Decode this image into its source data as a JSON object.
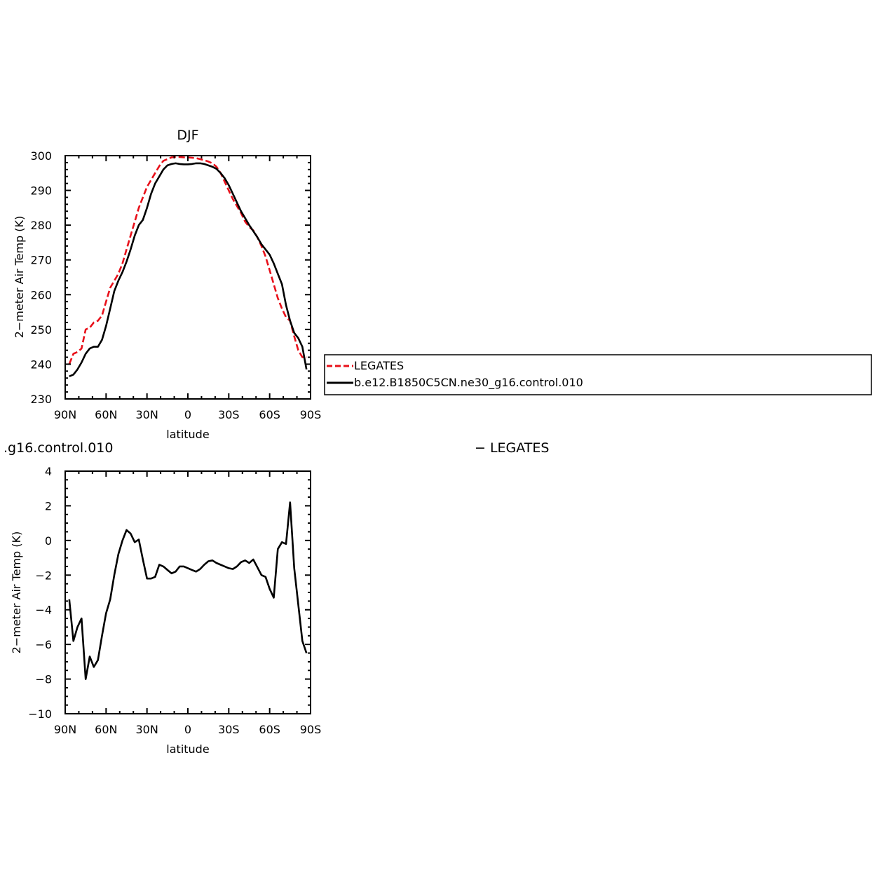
{
  "chart_data": [
    {
      "type": "line",
      "title": "DJF",
      "xlabel": "latitude",
      "ylabel": "2−meter Air Temp (K)",
      "xlim": [
        90,
        -90
      ],
      "ylim": [
        230,
        300
      ],
      "x_ticks": [
        90,
        60,
        30,
        0,
        -30,
        -60,
        -90
      ],
      "x_tick_labels": [
        "90N",
        "60N",
        "30N",
        "0",
        "30S",
        "60S",
        "90S"
      ],
      "y_ticks": [
        230,
        240,
        250,
        260,
        270,
        280,
        290,
        300
      ],
      "legend": {
        "position": "right",
        "entries": [
          {
            "label": "LEGATES",
            "color": "#e8101a",
            "style": "dashed"
          },
          {
            "label": "b.e12.B1850C5CN.ne30_g16.control.010",
            "color": "#000000",
            "style": "solid"
          }
        ]
      },
      "series": [
        {
          "name": "LEGATES",
          "color": "#e8101a",
          "style": "dashed",
          "x": [
            87,
            84,
            81,
            78,
            75,
            72,
            69,
            66,
            63,
            60,
            57,
            54,
            51,
            48,
            45,
            42,
            39,
            36,
            33,
            30,
            27,
            24,
            21,
            18,
            15,
            12,
            9,
            6,
            3,
            0,
            -3,
            -6,
            -9,
            -12,
            -15,
            -18,
            -21,
            -24,
            -27,
            -30,
            -33,
            -36,
            -39,
            -42,
            -45,
            -48,
            -51,
            -54,
            -57,
            -60,
            -63,
            -66,
            -69,
            -72,
            -75,
            -78,
            -81,
            -84,
            -87
          ],
          "y": [
            240,
            243,
            243.5,
            244.5,
            250,
            250.5,
            252,
            252.5,
            254,
            258,
            262,
            264,
            266,
            269,
            273,
            277,
            281,
            285,
            288,
            291,
            293,
            295,
            297,
            298.5,
            299,
            299.5,
            299.6,
            299.6,
            299.5,
            299.5,
            299.4,
            299.3,
            299,
            298.7,
            298.3,
            297.8,
            296.8,
            295,
            292.5,
            290,
            287.5,
            285.5,
            283.5,
            281,
            279.5,
            278.5,
            276.5,
            274,
            271,
            267,
            263,
            259,
            256,
            253.5,
            252.5,
            248,
            244,
            242,
            242
          ]
        },
        {
          "name": "b.e12.B1850C5CN.ne30_g16.control.010",
          "color": "#000000",
          "style": "solid",
          "x": [
            87,
            84,
            81,
            78,
            75,
            72,
            69,
            66,
            63,
            60,
            57,
            54,
            51,
            48,
            45,
            42,
            39,
            36,
            33,
            30,
            27,
            24,
            21,
            18,
            15,
            12,
            9,
            6,
            3,
            0,
            -3,
            -6,
            -9,
            -12,
            -15,
            -18,
            -21,
            -24,
            -27,
            -30,
            -33,
            -36,
            -39,
            -42,
            -45,
            -48,
            -51,
            -54,
            -57,
            -60,
            -63,
            -66,
            -69,
            -72,
            -75,
            -78,
            -81,
            -84,
            -87
          ],
          "y": [
            236.5,
            237,
            238.5,
            240.5,
            243,
            244.5,
            245,
            245,
            247,
            251,
            256,
            261,
            264,
            266.5,
            269.5,
            273,
            277,
            280,
            281.5,
            285,
            289,
            292,
            294,
            296,
            297.2,
            297.6,
            297.8,
            297.6,
            297.5,
            297.5,
            297.6,
            297.8,
            297.8,
            297.6,
            297.2,
            296.8,
            296.2,
            295,
            293.5,
            291.5,
            289,
            286.5,
            284,
            282,
            280,
            278.3,
            276.5,
            274.5,
            273,
            271.5,
            269,
            266,
            263,
            257,
            252.5,
            249,
            247.5,
            245,
            238.5
          ]
        }
      ]
    },
    {
      "type": "line",
      "title": ".g16.control.010",
      "title_right": "− LEGATES",
      "xlabel": "latitude",
      "ylabel": "2−meter Air Temp (K)",
      "xlim": [
        90,
        -90
      ],
      "ylim": [
        -10,
        4
      ],
      "x_ticks": [
        90,
        60,
        30,
        0,
        -30,
        -60,
        -90
      ],
      "x_tick_labels": [
        "90N",
        "60N",
        "30N",
        "0",
        "30S",
        "60S",
        "90S"
      ],
      "y_ticks": [
        -10,
        -8,
        -6,
        -4,
        -2,
        0,
        2,
        4
      ],
      "y_tick_labels": [
        "−10",
        "−8",
        "−6",
        "−4",
        "−2",
        "0",
        "2",
        "4"
      ],
      "series": [
        {
          "color": "#000000",
          "style": "solid",
          "x": [
            87,
            84,
            81,
            78,
            75,
            72,
            69,
            66,
            63,
            60,
            57,
            54,
            51,
            48,
            45,
            42,
            39,
            36,
            33,
            30,
            27,
            24,
            21,
            18,
            15,
            12,
            9,
            6,
            3,
            0,
            -3,
            -6,
            -9,
            -12,
            -15,
            -18,
            -21,
            -24,
            -27,
            -30,
            -33,
            -36,
            -39,
            -42,
            -45,
            -48,
            -51,
            -54,
            -57,
            -60,
            -63,
            -66,
            -69,
            -72,
            -75,
            -78,
            -81,
            -84,
            -87
          ],
          "y": [
            -3.4,
            -5.8,
            -5.0,
            -4.5,
            -8.0,
            -6.7,
            -7.3,
            -6.9,
            -5.5,
            -4.2,
            -3.4,
            -2.0,
            -0.8,
            0.0,
            0.6,
            0.4,
            -0.1,
            0.05,
            -1.1,
            -2.2,
            -2.2,
            -2.1,
            -1.4,
            -1.5,
            -1.7,
            -1.9,
            -1.8,
            -1.5,
            -1.5,
            -1.6,
            -1.7,
            -1.8,
            -1.65,
            -1.4,
            -1.2,
            -1.15,
            -1.3,
            -1.4,
            -1.5,
            -1.6,
            -1.65,
            -1.5,
            -1.25,
            -1.15,
            -1.3,
            -1.1,
            -1.55,
            -2.0,
            -2.1,
            -2.8,
            -3.3,
            -0.5,
            -0.1,
            -0.2,
            2.2,
            -1.6,
            -3.7,
            -5.8,
            -6.5
          ]
        }
      ]
    }
  ]
}
